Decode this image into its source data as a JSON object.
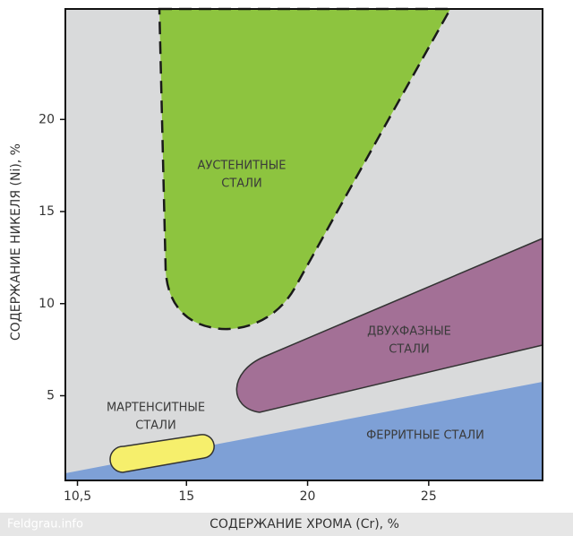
{
  "chart_data": {
    "type": "region-map",
    "x_label": "СОДЕРЖАНИЕ ХРОМА (Cr), %",
    "y_label": "СОДЕРЖАНИЕ НИКЕЛЯ (Ni), %",
    "xlim": [
      10,
      29.7
    ],
    "ylim": [
      0.4,
      26
    ],
    "xticks": [
      {
        "value": 10.5,
        "label": "10,5"
      },
      15,
      20,
      25
    ],
    "yticks": [
      5,
      10,
      15,
      20
    ],
    "regions": [
      {
        "name": "austenitic",
        "label": [
          "АУСТЕНИТНЫЕ",
          "СТАЛИ"
        ],
        "color": "#8dc43f"
      },
      {
        "name": "duplex",
        "label": [
          "ДВУХФАЗНЫЕ",
          "СТАЛИ"
        ],
        "color": "#a37096"
      },
      {
        "name": "martensitic",
        "label": [
          "МАРТЕНСИТНЫЕ",
          "СТАЛИ"
        ],
        "color": "#f6ef6c"
      },
      {
        "name": "ferritic",
        "label": [
          "ФЕРРИТНЫЕ СТАЛИ"
        ],
        "color": "#7ea0d6"
      }
    ],
    "watermark": "Feldgrau.info"
  }
}
